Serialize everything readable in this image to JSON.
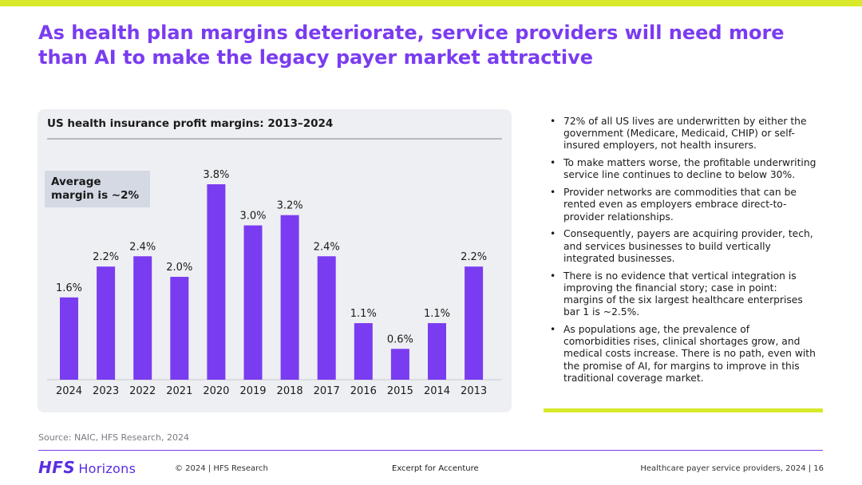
{
  "title": "As health plan margins deteriorate, service providers will need more than AI to make the legacy payer market attractive",
  "chart_data": {
    "type": "bar",
    "title": "US health insurance profit margins: 2013–2024",
    "categories": [
      "2024",
      "2023",
      "2022",
      "2021",
      "2020",
      "2019",
      "2018",
      "2017",
      "2016",
      "2015",
      "2014",
      "2013"
    ],
    "values": [
      1.6,
      2.2,
      2.4,
      2.0,
      3.8,
      3.0,
      3.2,
      2.4,
      1.1,
      0.6,
      1.1,
      2.2
    ],
    "data_labels": [
      "1.6%",
      "2.2%",
      "2.4%",
      "2.0%",
      "3.8%",
      "3.0%",
      "3.2%",
      "2.4%",
      "1.1%",
      "0.6%",
      "1.1%",
      "2.2%"
    ],
    "xlabel": "",
    "ylabel": "",
    "ylim": [
      0,
      3.8
    ],
    "bar_color": "#7a3cf0",
    "annotation": "Average margin is ~2%"
  },
  "bullets": [
    "72% of all US lives are underwritten by either the government (Medicare, Medicaid, CHIP) or self-insured employers, not health insurers.",
    "To make matters worse, the profitable underwriting service line continues to decline to below 30%.",
    "Provider networks are commodities that can be rented even as employers embrace direct-to-provider relationships.",
    "Consequently, payers are acquiring provider, tech, and services businesses to build vertically integrated businesses.",
    "There is no evidence that vertical integration is improving the financial story; case in point: margins of the six largest healthcare enterprises bar 1 is ~2.5%.",
    "As populations age, the prevalence of comorbidities rises, clinical shortages grow, and medical costs increase. There is no path, even with the promise of AI, for margins to improve in this traditional coverage market."
  ],
  "source": "Source: NAIC, HFS Research, 2024",
  "footer": {
    "logo_main": "HFS",
    "logo_sub": "Horizons",
    "copyright": "© 2024 | HFS Research",
    "excerpt": "Excerpt for Accenture",
    "right": "Healthcare payer service providers, 2024 | 16"
  },
  "colors": {
    "accent": "#7a3cf0",
    "highlight": "#d7e92a",
    "panel": "#eeeff2"
  }
}
